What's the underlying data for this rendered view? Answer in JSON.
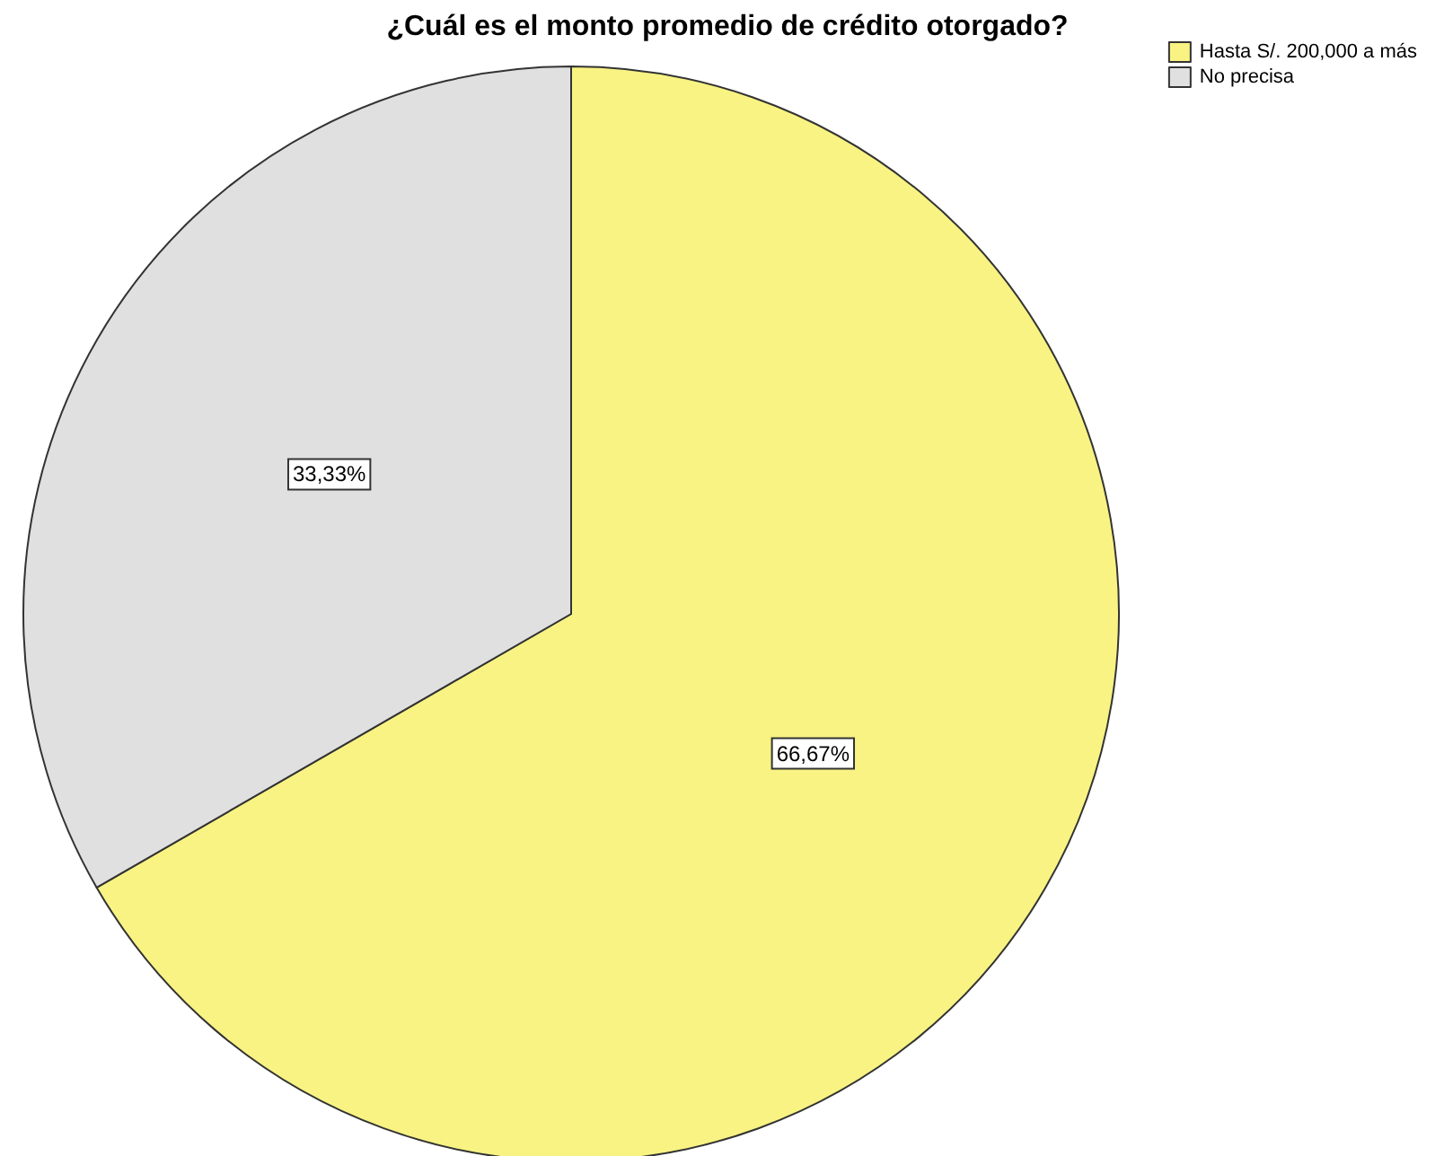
{
  "chart_data": {
    "type": "pie",
    "title": "¿Cuál es el monto promedio de crédito otorgado?",
    "categories": [
      "Hasta S/. 200,000 a más",
      "No precisa"
    ],
    "values": [
      66.67,
      33.33
    ],
    "value_labels": [
      "66,67%",
      "33,33%"
    ],
    "colors": [
      "#f8f383",
      "#e0e0e0"
    ],
    "legend": "top right"
  }
}
